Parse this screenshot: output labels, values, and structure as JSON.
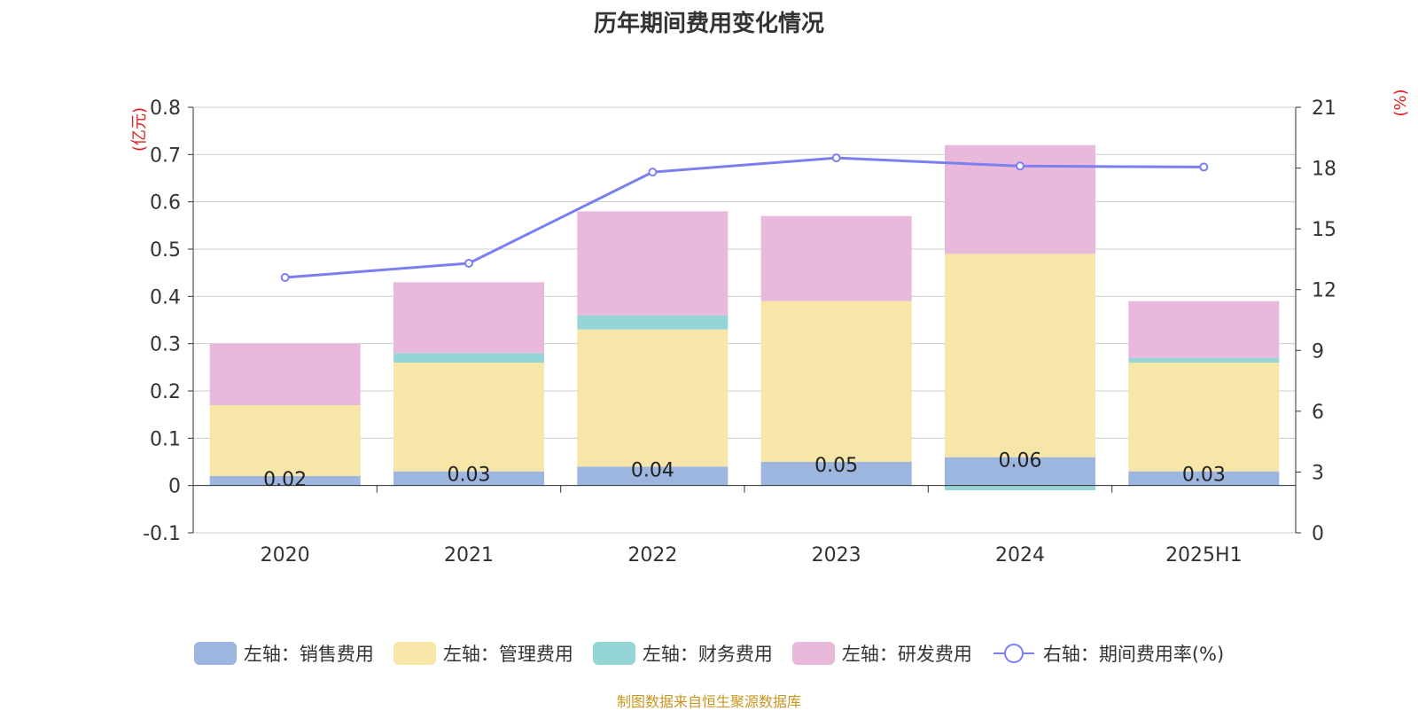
{
  "chart_data": {
    "type": "bar",
    "title": "历年期间费用变化情况",
    "stacked": true,
    "categories": [
      "2020",
      "2021",
      "2022",
      "2023",
      "2024",
      "2025H1"
    ],
    "left_axis": {
      "unit_label": "(亿元)",
      "ylim": [
        -0.1,
        0.8
      ],
      "ticks": [
        -0.1,
        0,
        0.1,
        0.2,
        0.3,
        0.4,
        0.5,
        0.6,
        0.7,
        0.8
      ]
    },
    "right_axis": {
      "unit_label": "(%)",
      "ylim": [
        0,
        21
      ],
      "ticks": [
        0,
        3,
        6,
        9,
        12,
        15,
        18,
        21
      ]
    },
    "series": [
      {
        "name": "左轴：销售费用",
        "type": "bar",
        "axis": "left",
        "color": "#9db6e0",
        "values": [
          0.02,
          0.03,
          0.04,
          0.05,
          0.06,
          0.03
        ],
        "data_labels": [
          "0.02",
          "0.03",
          "0.04",
          "0.05",
          "0.06",
          "0.03"
        ]
      },
      {
        "name": "左轴：管理费用",
        "type": "bar",
        "axis": "left",
        "color": "#f8e6a8",
        "values": [
          0.15,
          0.23,
          0.29,
          0.34,
          0.43,
          0.23
        ]
      },
      {
        "name": "左轴：财务费用",
        "type": "bar",
        "axis": "left",
        "color": "#96d5d5",
        "values": [
          0.0,
          0.02,
          0.03,
          0.0,
          -0.01,
          0.01
        ]
      },
      {
        "name": "左轴：研发费用",
        "type": "bar",
        "axis": "left",
        "color": "#e8b9da",
        "values": [
          0.13,
          0.15,
          0.22,
          0.18,
          0.23,
          0.12
        ]
      },
      {
        "name": "右轴：期间费用率(%)",
        "type": "line",
        "axis": "right",
        "color": "#7b7ff0",
        "values": [
          12.6,
          13.3,
          17.8,
          18.5,
          18.1,
          18.05
        ]
      }
    ],
    "grid": true,
    "legend_position": "bottom"
  },
  "source_note": "制图数据来自恒生聚源数据库"
}
